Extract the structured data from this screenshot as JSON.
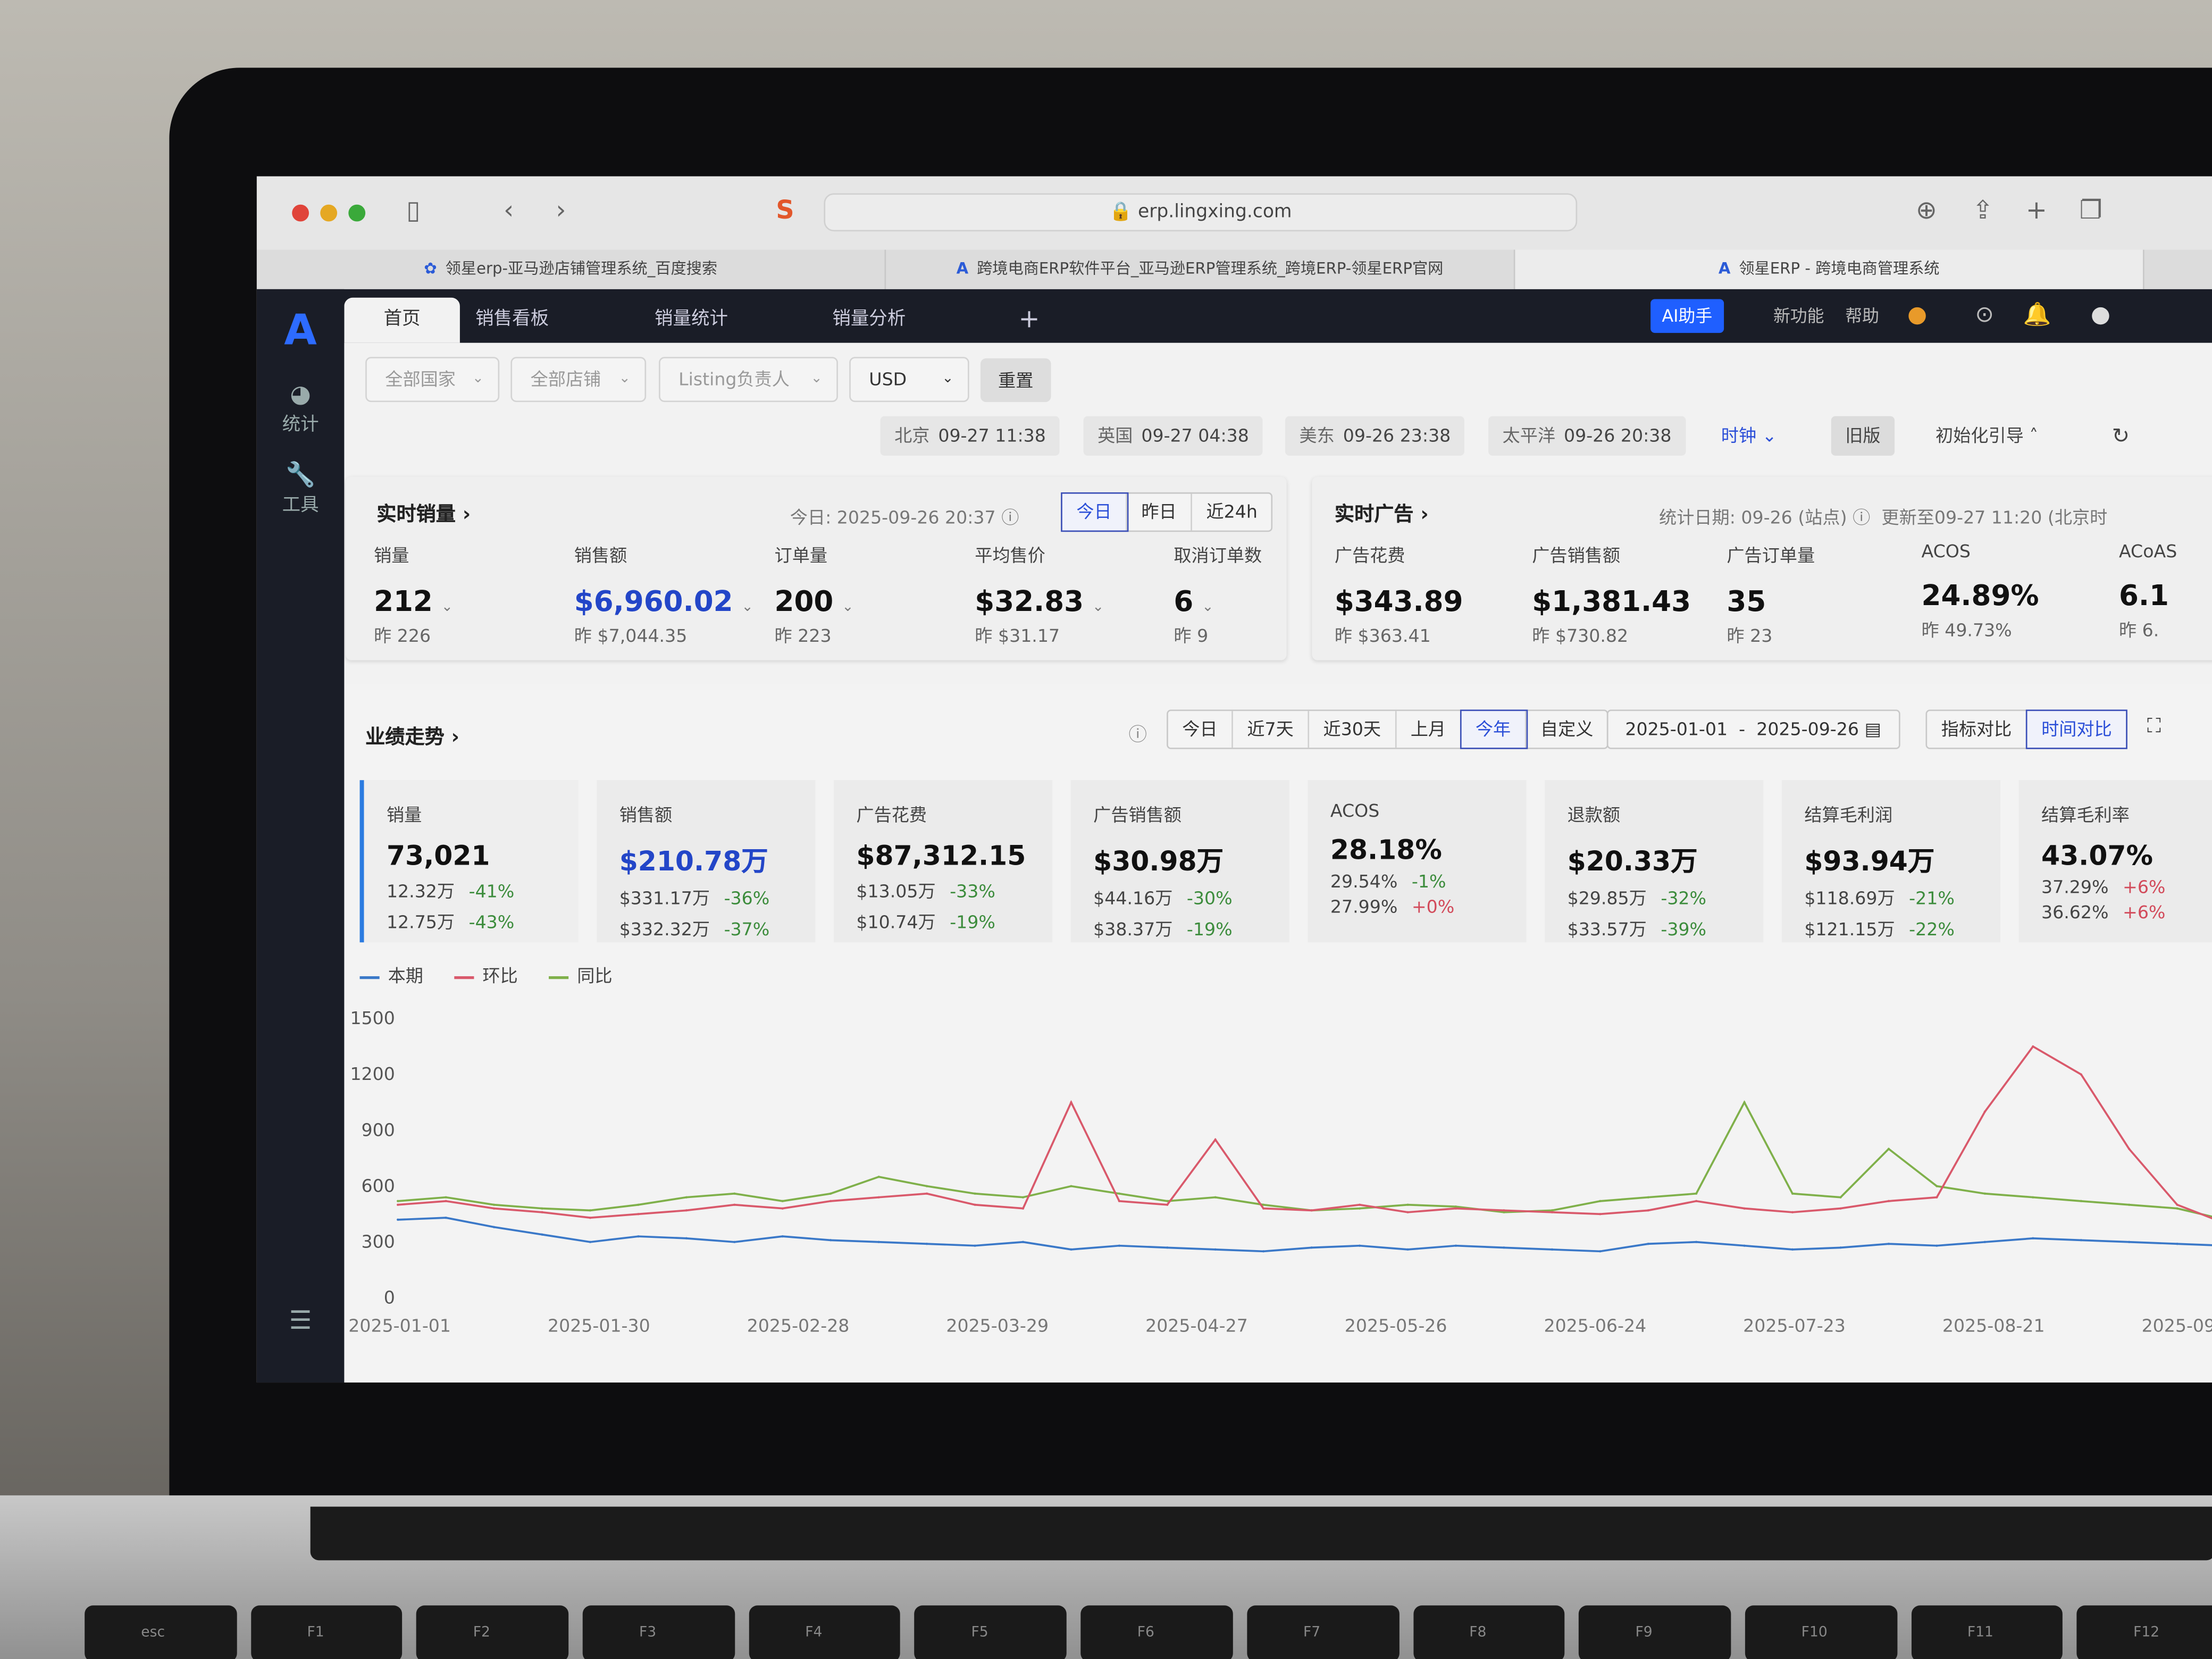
{
  "browser": {
    "url": "erp.lingxing.com",
    "tabs": [
      "领星erp-亚马逊店铺管理系统_百度搜索",
      "跨境电商ERP软件平台_亚马逊ERP管理系统_跨境ERP-领星ERP官网",
      "领星ERP - 跨境电商管理系统"
    ]
  },
  "sidebar": {
    "logo": "A",
    "items": [
      {
        "icon": "pie-chart-icon",
        "label": "统计"
      },
      {
        "icon": "wrench-icon",
        "label": "工具"
      }
    ]
  },
  "app_tabs": [
    "首页",
    "销售看板",
    "销量统计",
    "销量分析"
  ],
  "header": {
    "ai": "AI助手",
    "new": "新功能",
    "help": "帮助"
  },
  "filters": {
    "country": "全部国家",
    "shop": "全部店铺",
    "listing": "Listing负责人",
    "currency": "USD",
    "reset": "重置"
  },
  "clocks": [
    {
      "city": "北京",
      "time": "09-27 11:38"
    },
    {
      "city": "英国",
      "time": "09-27 04:38"
    },
    {
      "city": "美东",
      "time": "09-26 23:38"
    },
    {
      "city": "太平洋",
      "time": "09-26 20:38"
    }
  ],
  "clock_menu": "时钟",
  "old_version": "旧版",
  "guide": "初始化引导",
  "realtime_sales": {
    "title": "实时销量",
    "today": "今日: 2025-09-26 20:37",
    "ranges": [
      "今日",
      "昨日",
      "近24h"
    ],
    "active": 0,
    "kpis": [
      {
        "label": "销量",
        "value": "212",
        "yesterday": "昨 226"
      },
      {
        "label": "销售额",
        "value": "$6,960.02",
        "yesterday": "昨 $7,044.35"
      },
      {
        "label": "订单量",
        "value": "200",
        "yesterday": "昨 223"
      },
      {
        "label": "平均售价",
        "value": "$32.83",
        "yesterday": "昨 $31.17"
      },
      {
        "label": "取消订单数",
        "value": "6",
        "yesterday": "昨 9"
      }
    ]
  },
  "realtime_ads": {
    "title": "实时广告",
    "stat_date": "统计日期: 09-26 (站点)",
    "updated": "更新至09-27 11:20 (北京时",
    "kpis": [
      {
        "label": "广告花费",
        "value": "$343.89",
        "yesterday": "昨 $363.41"
      },
      {
        "label": "广告销售额",
        "value": "$1,381.43",
        "yesterday": "昨 $730.82"
      },
      {
        "label": "广告订单量",
        "value": "35",
        "yesterday": "昨 23"
      },
      {
        "label": "ACOS",
        "value": "24.89%",
        "yesterday": "昨 49.73%"
      },
      {
        "label": "ACoAS",
        "value": "6.1",
        "yesterday": "昨 6."
      }
    ]
  },
  "trend": {
    "title": "业绩走势",
    "ranges": [
      "今日",
      "近7天",
      "近30天",
      "上月",
      "今年",
      "自定义"
    ],
    "active": 4,
    "date_range": "2025-01-01  -  2025-09-26",
    "compare": [
      "指标对比",
      "时间对比"
    ],
    "compare_active": 1,
    "metrics": [
      {
        "label": "销量",
        "value": "73,021",
        "mom": "12.32万",
        "mom_pct": "-41%",
        "yoy": "12.75万",
        "yoy_pct": "-43%"
      },
      {
        "label": "销售额",
        "value": "$210.78万",
        "mom": "$331.17万",
        "mom_pct": "-36%",
        "yoy": "$332.32万",
        "yoy_pct": "-37%"
      },
      {
        "label": "广告花费",
        "value": "$87,312.15",
        "mom": "$13.05万",
        "mom_pct": "-33%",
        "yoy": "$10.74万",
        "yoy_pct": "-19%"
      },
      {
        "label": "广告销售额",
        "value": "$30.98万",
        "mom": "$44.16万",
        "mom_pct": "-30%",
        "yoy": "$38.37万",
        "yoy_pct": "-19%"
      },
      {
        "label": "ACOS",
        "value": "28.18%",
        "mom": "29.54%",
        "mom_pct": "-1%",
        "yoy": "27.99%",
        "yoy_pct": "+0%"
      },
      {
        "label": "退款额",
        "value": "$20.33万",
        "mom": "$29.85万",
        "mom_pct": "-32%",
        "yoy": "$33.57万",
        "yoy_pct": "-39%"
      },
      {
        "label": "结算毛利润",
        "value": "$93.94万",
        "mom": "$118.69万",
        "mom_pct": "-21%",
        "yoy": "$121.15万",
        "yoy_pct": "-22%"
      },
      {
        "label": "结算毛利率",
        "value": "43.07%",
        "mom": "37.29%",
        "mom_pct": "+6%",
        "yoy": "36.62%",
        "yoy_pct": "+6%"
      }
    ]
  },
  "colors": {
    "current": "#3a78c8",
    "mom": "#d9596b",
    "yoy": "#7fb04a",
    "accent": "#2346c8"
  },
  "chart_data": {
    "type": "line",
    "xlabel": "",
    "ylabel": "",
    "ylim": [
      0,
      1500
    ],
    "yticks": [
      0,
      300,
      600,
      900,
      1200,
      1500
    ],
    "grid": false,
    "legend": "top-left",
    "xticks": [
      "2025-01-01",
      "2025-01-30",
      "2025-02-28",
      "2025-03-29",
      "2025-04-27",
      "2025-05-26",
      "2025-06-24",
      "2025-07-23",
      "2025-08-21",
      "2025-09"
    ],
    "x": [
      "2025-01-01",
      "2025-01-08",
      "2025-01-15",
      "2025-01-22",
      "2025-01-29",
      "2025-02-05",
      "2025-02-12",
      "2025-02-19",
      "2025-02-26",
      "2025-03-05",
      "2025-03-12",
      "2025-03-19",
      "2025-03-26",
      "2025-04-02",
      "2025-04-09",
      "2025-04-16",
      "2025-04-23",
      "2025-04-30",
      "2025-05-07",
      "2025-05-14",
      "2025-05-21",
      "2025-05-28",
      "2025-06-04",
      "2025-06-11",
      "2025-06-18",
      "2025-06-25",
      "2025-07-02",
      "2025-07-09",
      "2025-07-16",
      "2025-07-23",
      "2025-07-30",
      "2025-08-06",
      "2025-08-13",
      "2025-08-20",
      "2025-08-27",
      "2025-09-03",
      "2025-09-10",
      "2025-09-17",
      "2025-09-24"
    ],
    "series": [
      {
        "name": "本期",
        "values": [
          420,
          430,
          380,
          340,
          300,
          330,
          320,
          300,
          330,
          310,
          300,
          290,
          280,
          300,
          260,
          280,
          270,
          260,
          250,
          270,
          280,
          260,
          280,
          270,
          260,
          250,
          290,
          300,
          280,
          260,
          270,
          290,
          280,
          300,
          320,
          310,
          300,
          290,
          280
        ]
      },
      {
        "name": "环比",
        "values": [
          500,
          520,
          480,
          460,
          430,
          450,
          470,
          500,
          480,
          520,
          540,
          560,
          500,
          480,
          1050,
          520,
          500,
          850,
          480,
          470,
          500,
          460,
          480,
          470,
          460,
          450,
          470,
          520,
          480,
          460,
          480,
          520,
          540,
          1000,
          1350,
          1200,
          800,
          500,
          400
        ]
      },
      {
        "name": "同比",
        "values": [
          520,
          540,
          500,
          480,
          470,
          500,
          540,
          560,
          520,
          560,
          650,
          600,
          560,
          540,
          600,
          560,
          520,
          540,
          500,
          470,
          480,
          500,
          490,
          460,
          470,
          520,
          540,
          560,
          1050,
          560,
          540,
          800,
          600,
          560,
          540,
          520,
          500,
          480,
          420
        ]
      }
    ]
  }
}
